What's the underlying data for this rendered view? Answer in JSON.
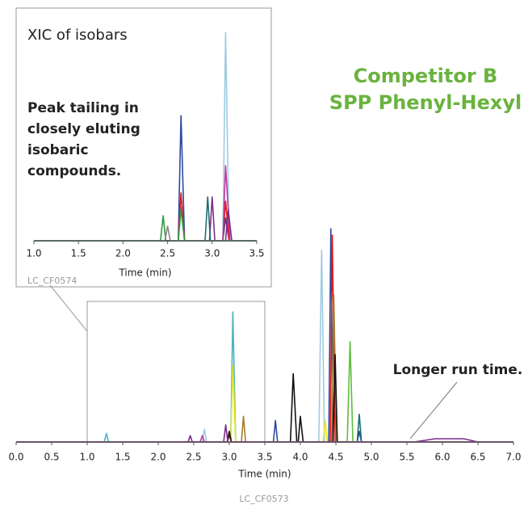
{
  "chart_data": [
    {
      "type": "line",
      "title": "Competitor B",
      "subtitle": "SPP Phenyl-Hexyl",
      "annotation": "Longer run time.",
      "footnote": "LC_CF0573",
      "xlabel": "Time (min)",
      "xlim": [
        0,
        7
      ],
      "ylim": [
        0,
        100
      ],
      "xticks": [
        {
          "value": 0,
          "label": "0.0"
        },
        0.5,
        {
          "value": 1,
          "label": "1.0"
        },
        1.5,
        {
          "value": 2,
          "label": "2.0"
        },
        2.5,
        {
          "value": 3,
          "label": "3.0"
        },
        3.5,
        {
          "value": 4,
          "label": "4.0"
        },
        4.5,
        {
          "value": 5,
          "label": "5.0"
        },
        5.5,
        {
          "value": 6,
          "label": "6.0"
        },
        6.5,
        {
          "value": 7,
          "label": "7.0"
        }
      ],
      "series": [
        {
          "color": "#9ecae1",
          "x": [
            0,
            2.62,
            2.65,
            2.68,
            4.26,
            4.3,
            4.34,
            7
          ],
          "values": [
            0,
            0,
            6,
            0,
            0,
            90,
            0,
            0
          ]
        },
        {
          "color": "#2b4a9e",
          "x": [
            0,
            3.62,
            3.65,
            3.68,
            4.4,
            4.43,
            4.46,
            4.8,
            4.83,
            4.86,
            7
          ],
          "values": [
            0,
            0,
            10,
            0,
            0,
            100,
            0,
            0,
            5,
            0,
            0
          ]
        },
        {
          "color": "#e31a1c",
          "x": [
            0,
            2.97,
            3.0,
            3.03,
            4.42,
            4.45,
            4.49,
            7
          ],
          "values": [
            0,
            0,
            3,
            0,
            0,
            97,
            0,
            0
          ]
        },
        {
          "color": "#a67c2a",
          "x": [
            0,
            3.17,
            3.2,
            3.23,
            4.44,
            4.47,
            4.51,
            7
          ],
          "values": [
            0,
            0,
            12,
            0,
            0,
            69,
            0,
            0
          ]
        },
        {
          "color": "#4fb3bf",
          "x": [
            0,
            1.24,
            1.27,
            1.3,
            3.02,
            3.05,
            3.09,
            7
          ],
          "values": [
            0,
            0,
            4,
            0,
            0,
            61,
            0,
            0
          ]
        },
        {
          "color": "#e6e619",
          "x": [
            0,
            3.02,
            3.05,
            3.09,
            4.32,
            4.35,
            4.38,
            7
          ],
          "values": [
            0,
            0,
            36,
            0,
            0,
            10,
            0,
            0
          ]
        },
        {
          "color": "#111111",
          "x": [
            0,
            2.97,
            3.0,
            3.03,
            3.86,
            3.9,
            3.95,
            3.97,
            4.0,
            4.04,
            4.46,
            4.49,
            4.52,
            7
          ],
          "values": [
            0,
            0,
            5,
            0,
            0,
            32,
            0,
            0,
            12,
            0,
            0,
            41,
            0,
            0
          ]
        },
        {
          "color": "#5bbf3a",
          "x": [
            0,
            4.66,
            4.7,
            4.74,
            7
          ],
          "values": [
            0,
            0,
            47,
            0,
            0
          ]
        },
        {
          "color": "#7b2d8e",
          "x": [
            0,
            2.42,
            2.45,
            2.48,
            2.92,
            2.95,
            2.98,
            5.6,
            5.9,
            6.3,
            6.5,
            7
          ],
          "values": [
            0,
            0,
            3,
            0,
            0,
            8,
            0,
            0,
            1.5,
            1.5,
            0,
            0
          ]
        },
        {
          "color": "#1f6e6e",
          "x": [
            0,
            4.8,
            4.83,
            4.86,
            7
          ],
          "values": [
            0,
            0,
            13,
            0,
            0
          ]
        },
        {
          "color": "#c0399e",
          "x": [
            0,
            2.59,
            2.62,
            2.65,
            7
          ],
          "values": [
            0,
            0,
            3,
            0,
            0
          ]
        }
      ]
    },
    {
      "type": "line",
      "title": "XIC of isobars",
      "annotation": [
        "Peak tailing in",
        "closely eluting",
        "isobaric",
        "compounds."
      ],
      "footnote": "LC_CF0574",
      "xlabel": "Time (min)",
      "xlim": [
        1,
        3.5
      ],
      "ylim": [
        0,
        100
      ],
      "xticks": [
        {
          "value": 1,
          "label": "1.0"
        },
        1.5,
        {
          "value": 2,
          "label": "2.0"
        },
        2.5,
        {
          "value": 3,
          "label": "3.0"
        },
        3.5
      ],
      "series": [
        {
          "color": "#9ecae1",
          "x": [
            1,
            3.12,
            3.15,
            3.19,
            3.5
          ],
          "values": [
            0,
            0,
            100,
            0,
            0
          ]
        },
        {
          "color": "#2b4a9e",
          "x": [
            1,
            2.62,
            2.65,
            2.69,
            3.12,
            3.15,
            3.19,
            3.5
          ],
          "values": [
            0,
            0,
            60,
            0,
            0,
            11,
            0,
            0
          ]
        },
        {
          "color": "#e31a1c",
          "x": [
            1,
            2.62,
            2.65,
            2.69,
            3.12,
            3.15,
            3.19,
            3.5
          ],
          "values": [
            0,
            0,
            23,
            0,
            0,
            19,
            0,
            0
          ]
        },
        {
          "color": "#c0399e",
          "x": [
            1,
            2.62,
            2.65,
            2.69,
            3.12,
            3.15,
            3.2,
            3.5
          ],
          "values": [
            0,
            0,
            16,
            0,
            0,
            36,
            0,
            0
          ]
        },
        {
          "color": "#7b2d8e",
          "x": [
            1,
            2.97,
            3.0,
            3.03,
            3.15,
            3.18,
            3.22,
            3.5
          ],
          "values": [
            0,
            0,
            21,
            0,
            0,
            15,
            0,
            0
          ]
        },
        {
          "color": "#2e9e3e",
          "x": [
            1,
            2.42,
            2.45,
            2.48,
            2.62,
            2.65,
            2.69,
            3.5
          ],
          "values": [
            0,
            0,
            12,
            0,
            0,
            15,
            0,
            0
          ]
        },
        {
          "color": "#1f6e6e",
          "x": [
            1,
            2.92,
            2.95,
            2.98,
            3.5
          ],
          "values": [
            0,
            0,
            21,
            0,
            0
          ]
        },
        {
          "color": "#888888",
          "x": [
            1,
            2.47,
            2.5,
            2.53,
            3.5
          ],
          "values": [
            0,
            0,
            7,
            0,
            0
          ]
        }
      ]
    }
  ]
}
